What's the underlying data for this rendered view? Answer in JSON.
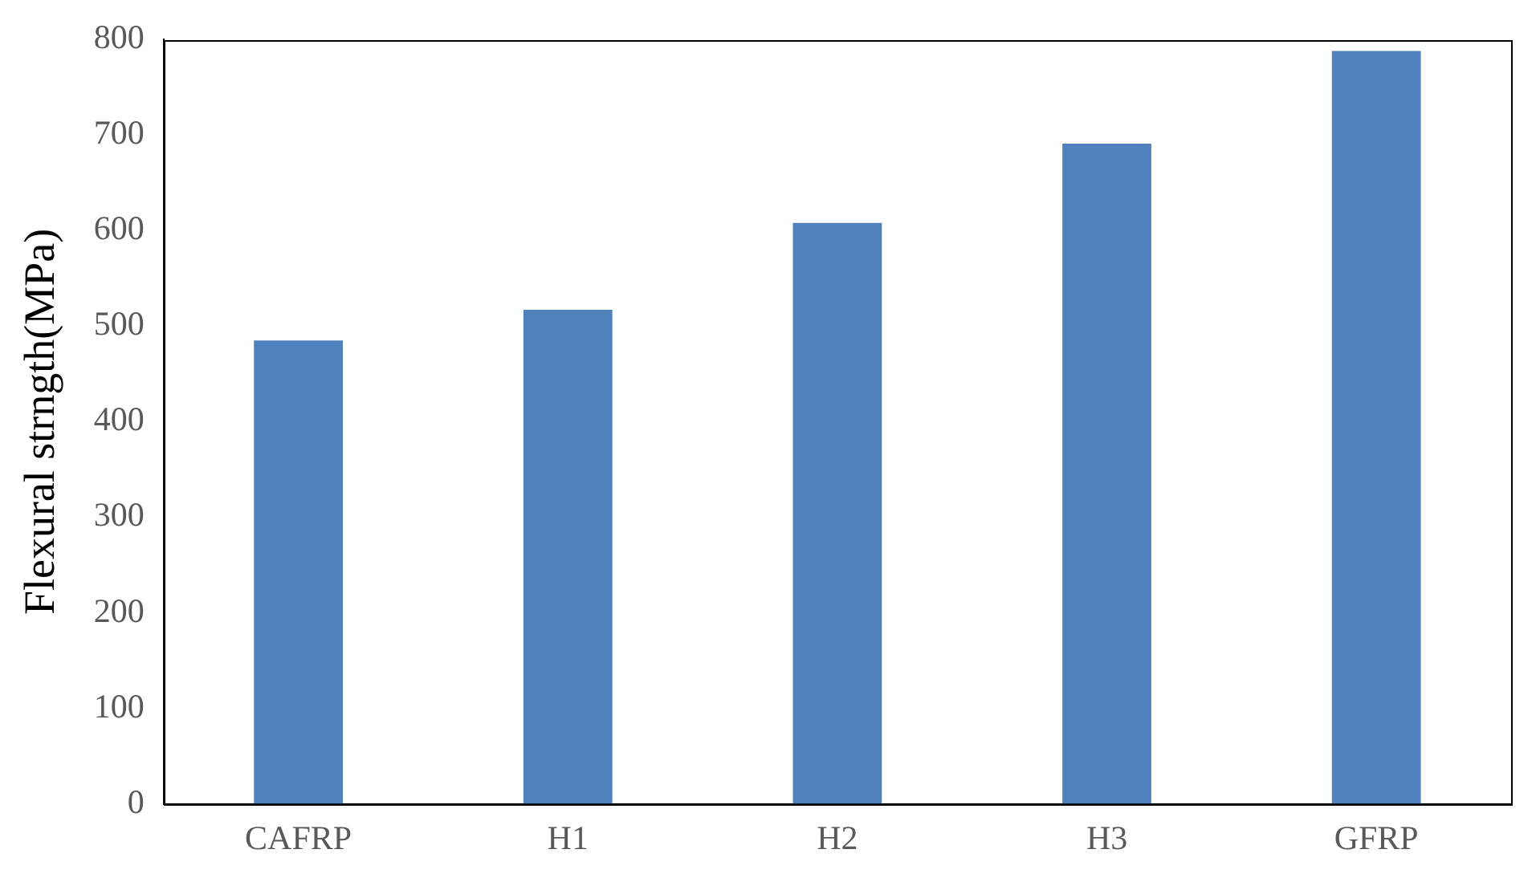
{
  "chart_data": {
    "type": "bar",
    "ylabel": "Flexural strngth(MPa)",
    "categories": [
      "CAFRP",
      "H1",
      "H2",
      "H3",
      "GFRP"
    ],
    "values": [
      485,
      517,
      608,
      691,
      788
    ],
    "color": "#4f81bd",
    "ylim": [
      0,
      800
    ],
    "yticks": [
      0,
      100,
      200,
      300,
      400,
      500,
      600,
      700,
      800
    ],
    "grid": false,
    "legend": false
  }
}
